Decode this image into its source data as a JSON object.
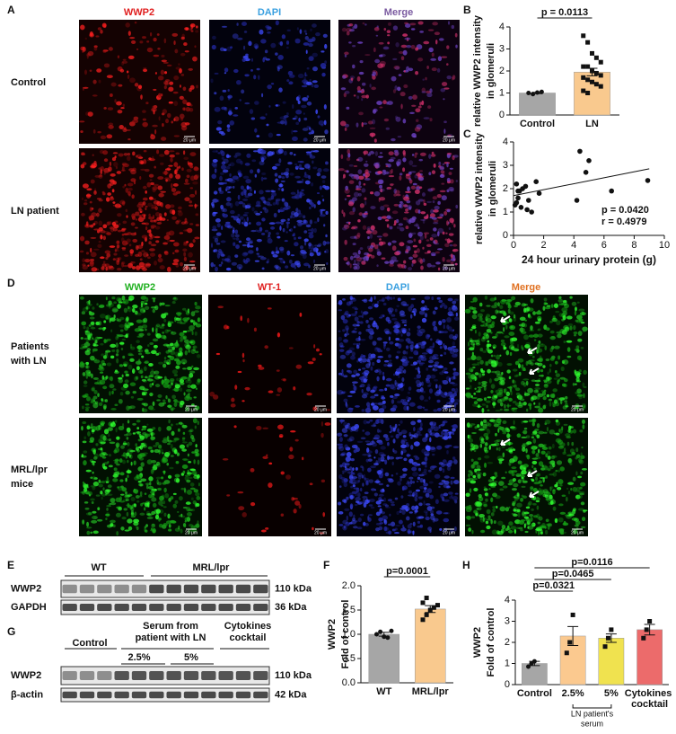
{
  "panel_A": {
    "label": "A",
    "columns": [
      "WWP2",
      "DAPI",
      "Merge"
    ],
    "rows": [
      "Control",
      "LN patient"
    ],
    "scale_bar": "20 μm"
  },
  "panel_D": {
    "label": "D",
    "columns": [
      "WWP2",
      "WT-1",
      "DAPI",
      "Merge"
    ],
    "rows": [
      [
        "Patients",
        "with LN"
      ],
      [
        "MRL/lpr",
        "mice"
      ]
    ],
    "scale_bar": "20 μm"
  },
  "panel_E": {
    "label": "E",
    "groups": [
      "WT",
      "MRL/lpr"
    ],
    "rows": [
      {
        "label": "WWP2",
        "size": "110 kDa"
      },
      {
        "label": "GAPDH",
        "size": "36 kDa"
      }
    ]
  },
  "panel_G": {
    "label": "G",
    "groups": [
      "Control",
      "Serum from",
      "patient with LN",
      "Cytokines",
      "cocktail"
    ],
    "subgroups": [
      "2.5%",
      "5%"
    ],
    "rows": [
      {
        "label": "WWP2",
        "size": "110 kDa"
      },
      {
        "label": "β-actin",
        "size": "42 kDa"
      }
    ]
  },
  "chart_data": [
    {
      "type": "bar",
      "panel": "B",
      "ylabel": [
        "relative WWP2 intensity",
        "in glomeruli"
      ],
      "categories": [
        "Control",
        "LN"
      ],
      "values": [
        1.0,
        1.95
      ],
      "errors": [
        0.03,
        0.17
      ],
      "colors": [
        "#a6a6a6",
        "#f9c98e"
      ],
      "points": [
        [
          1.0,
          0.95,
          1.02,
          1.05
        ],
        [
          3.6,
          3.3,
          2.8,
          2.6,
          2.4,
          2.2,
          2.2,
          2.0,
          1.9,
          1.8,
          1.7,
          1.6,
          1.5,
          1.4,
          1.3,
          1.1,
          1.0
        ]
      ],
      "comparisons": [
        "p = 0.0113"
      ],
      "ylim": [
        0,
        4
      ],
      "yticks": [
        0,
        1,
        2,
        3,
        4
      ]
    },
    {
      "type": "scatter",
      "panel": "C",
      "ylabel": [
        "relative WWP2 intensity",
        "in glomeruli"
      ],
      "xlabel": "24 hour urinary protein (g)",
      "x": [
        0.1,
        0.2,
        0.3,
        0.4,
        0.5,
        0.6,
        0.8,
        1.0,
        1.2,
        1.5,
        1.7,
        4.2,
        4.4,
        4.8,
        5.0,
        6.5,
        8.9,
        0.2,
        0.9,
        0.3
      ],
      "y": [
        1.3,
        2.2,
        1.6,
        1.9,
        1.2,
        2.0,
        2.1,
        1.5,
        1.0,
        2.3,
        1.8,
        1.5,
        3.6,
        2.7,
        3.2,
        1.9,
        2.35,
        1.4,
        1.1,
        1.9
      ],
      "fit": {
        "x": [
          0,
          9
        ],
        "y": [
          1.7,
          2.85
        ]
      },
      "annotations": [
        "p = 0.0420",
        "r = 0.4979"
      ],
      "xlim": [
        0,
        10
      ],
      "xticks": [
        0,
        2,
        4,
        6,
        8,
        10
      ],
      "ylim": [
        0,
        4
      ],
      "yticks": [
        0,
        1,
        2,
        3,
        4
      ]
    },
    {
      "type": "bar",
      "panel": "F",
      "ylabel": [
        "WWP2",
        "Fold of control"
      ],
      "categories": [
        "WT",
        "MRL/lpr"
      ],
      "values": [
        1.0,
        1.52
      ],
      "errors": [
        0.04,
        0.07
      ],
      "colors": [
        "#a6a6a6",
        "#f9c98e"
      ],
      "points": [
        [
          1.0,
          1.05,
          0.95,
          0.93,
          1.07
        ],
        [
          1.3,
          1.4,
          1.5,
          1.55,
          1.6,
          1.65,
          1.75
        ]
      ],
      "comparisons": [
        "p=0.0001"
      ],
      "ylim": [
        0,
        2
      ],
      "yticks": [
        {
          "value": 0,
          "label": "0.0"
        },
        0.5,
        {
          "value": 1,
          "label": "1.0"
        },
        1.5,
        {
          "value": 2,
          "label": "2.0"
        }
      ]
    },
    {
      "type": "bar",
      "panel": "H",
      "ylabel": [
        "WWP2",
        "Fold of control"
      ],
      "categories": [
        "Control",
        "2.5%",
        "5%",
        "Cytokines cocktail"
      ],
      "values": [
        1.0,
        2.3,
        2.2,
        2.6
      ],
      "errors": [
        0.1,
        0.45,
        0.2,
        0.25
      ],
      "colors": [
        "#a6a6a6",
        "#fbc98f",
        "#f0e24f",
        "#ec6b6b"
      ],
      "points": [
        [
          0.85,
          1.0,
          1.1
        ],
        [
          1.5,
          2.0,
          3.3
        ],
        [
          1.8,
          2.2,
          2.6
        ],
        [
          2.2,
          2.6,
          3.0
        ]
      ],
      "comparisons": [
        "p=0.0321",
        "p=0.0465",
        "p=0.0116"
      ],
      "group_label": [
        "LN patient's",
        "serum"
      ],
      "ylim": [
        0,
        4
      ],
      "yticks": [
        0,
        1,
        2,
        3,
        4
      ]
    }
  ]
}
